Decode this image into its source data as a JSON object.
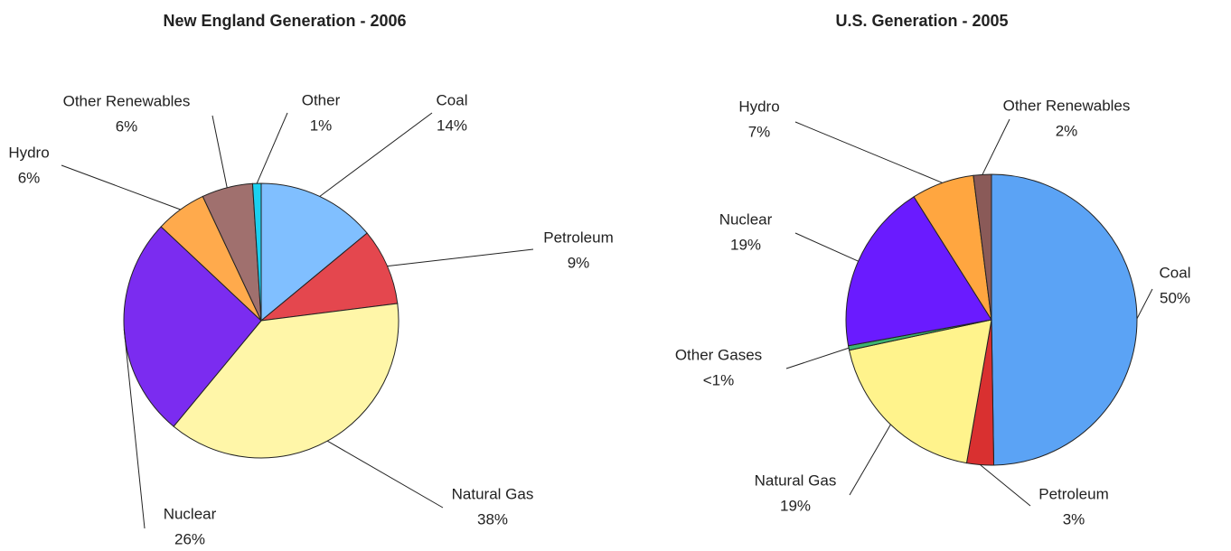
{
  "chart_data": [
    {
      "type": "pie",
      "title": "New England Generation - 2006",
      "categories": [
        "Coal",
        "Petroleum",
        "Natural Gas",
        "Nuclear",
        "Hydro",
        "Other Renewables",
        "Other"
      ],
      "values": [
        14,
        9,
        38,
        26,
        6,
        6,
        1
      ],
      "value_labels": [
        "14%",
        "9%",
        "38%",
        "26%",
        "6%",
        "6%",
        "1%"
      ],
      "colors": [
        "#80bfff",
        "#e4474e",
        "#fff6a8",
        "#7b2cf0",
        "#ffaa4c",
        "#a0706e",
        "#1ad0f0"
      ]
    },
    {
      "type": "pie",
      "title": "U.S. Generation - 2005",
      "categories": [
        "Coal",
        "Petroleum",
        "Natural Gas",
        "Other Gases",
        "Nuclear",
        "Hydro",
        "Other Renewables"
      ],
      "values": [
        50,
        3,
        19,
        0.5,
        19,
        7,
        2
      ],
      "value_labels": [
        "50%",
        "3%",
        "19%",
        "<1%",
        "19%",
        "7%",
        "2%"
      ],
      "colors": [
        "#5ba3f5",
        "#d93030",
        "#fff38c",
        "#3cb371",
        "#6a1bff",
        "#ffa640",
        "#8a5a58"
      ]
    }
  ]
}
